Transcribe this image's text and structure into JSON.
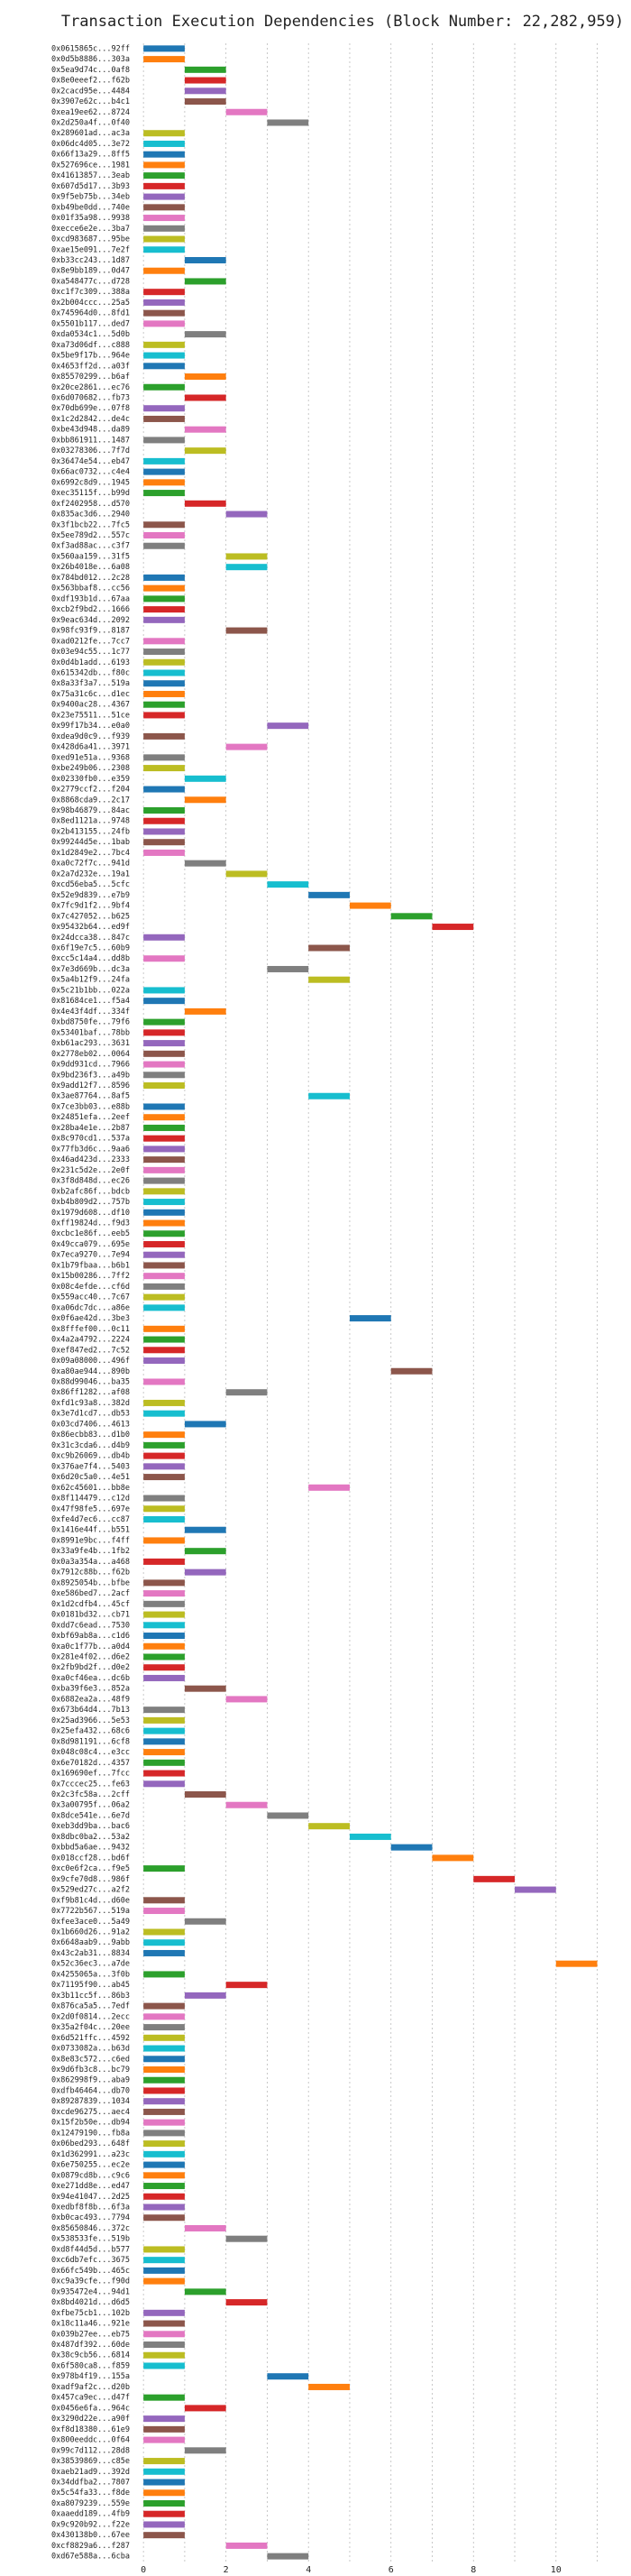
{
  "chart_data": {
    "type": "gantt",
    "title": "Transaction Execution Dependencies (Block Number: 22,282,959)",
    "categories": [
      "0x0615865c...92ff",
      "0x0d5b8886...303a",
      "0x5ea9d74c...0af8",
      "0x8e0eeef2...f62b",
      "0x2cacd95e...4484",
      "0x3907e62c...b4c1",
      "0xea19ee62...8724",
      "0x2d250a4f...0f40",
      "0x289601ad...ac3a",
      "0x06dc4d05...3e72",
      "0x66f13a29...8ff5",
      "0x527696ce...1981",
      "0x41613857...3eab",
      "0x607d5d17...3b93",
      "0x9f5eb75b...34eb",
      "0xb49be0dd...740e",
      "0x01f35a98...9938",
      "0xecce6e2e...3ba7",
      "0xcd983687...95be",
      "0xae15e091...7e2f",
      "0xb33cc243...1d87",
      "0x8e9bb189...0d47",
      "0xa548477c...d728",
      "0xc1f7c309...388a",
      "0x2b004ccc...25a5",
      "0x745964d0...8fd1",
      "0x5501b117...ded7",
      "0xda0534c1...5d0b",
      "0xa73d06df...c888",
      "0x5be9f17b...964e",
      "0x4653ff2d...a03f",
      "0x85570299...b6af",
      "0x20ce2861...ec76",
      "0x6d070682...fb73",
      "0x70db699e...07f8",
      "0x1c2d2842...de4c",
      "0xbe43d948...da89",
      "0xbb861911...1487",
      "0x03278306...7f7d",
      "0x36474e54...eb47",
      "0x66ac0732...c4e4",
      "0x6992c8d9...1945",
      "0xec35115f...b99d",
      "0xf2402958...d570",
      "0x835ac3d6...2940",
      "0x3f1bcb22...7fc5",
      "0x5ee789d2...557c",
      "0xf3ad88ac...c3f7",
      "0x560aa159...31f5",
      "0x26b4018e...6a08",
      "0x784bd012...2c28",
      "0x563bbaf8...cc56",
      "0xdf193b1d...67aa",
      "0xcb2f9bd2...1666",
      "0x9eac634d...2092",
      "0x98fc93f9...8187",
      "0xad0212fe...7cc7",
      "0x03e94c55...1c77",
      "0x0d4b1add...6193",
      "0x615342db...f80c",
      "0x8a33f3a7...519a",
      "0x75a31c6c...d1ec",
      "0x9400ac28...4367",
      "0x23e75511...51ce",
      "0x99f17b34...e0a0",
      "0xdea9d0c9...f939",
      "0x428d6a41...3971",
      "0xed91e51a...9368",
      "0xbe249b06...2308",
      "0x02330fb0...e359",
      "0x2779ccf2...f204",
      "0x8868cda9...2c17",
      "0x98b46879...84ac",
      "0x8ed1121a...9748",
      "0x2b413155...24fb",
      "0x99244d5e...1bab",
      "0x1d2849e2...7bc4",
      "0xa0c72f7c...941d",
      "0x2a7d232e...19a1",
      "0xcd56eba5...5cfc",
      "0x52e9d839...e7b9",
      "0x7fc9d1f2...9bf4",
      "0x7c427052...b625",
      "0x95432b64...ed9f",
      "0x24dcca38...847c",
      "0x6f19e7c5...60b9",
      "0xcc5c14a4...dd8b",
      "0x7e3d669b...dc3a",
      "0x5a4b12f9...24fa",
      "0x5c21b1bb...022a",
      "0x81684ce1...f5a4",
      "0x4e43f4df...334f",
      "0xbd8750fe...79f6",
      "0x53401baf...78bb",
      "0xb61ac293...3631",
      "0x2778eb02...0064",
      "0x9dd931cd...7966",
      "0x9bd236f3...a49b",
      "0x9add12f7...8596",
      "0x3ae87764...8af5",
      "0x7ce3bb03...e88b",
      "0x24851efa...2eef",
      "0x28ba4e1e...2b87",
      "0x8c970cd1...537a",
      "0x77fb3d6c...9aa6",
      "0x46ad423d...2333",
      "0x231c5d2e...2e0f",
      "0x3f8d848d...ec26",
      "0xb2afc86f...bdcb",
      "0xb4b809d2...757b",
      "0x1979d608...df10",
      "0xff19824d...f9d3",
      "0xcbc1e86f...eeb5",
      "0x49cca079...695e",
      "0x7eca9270...7e94",
      "0x1b79fbaa...b6b1",
      "0x15b00286...7ff2",
      "0x08c4efde...cf6d",
      "0x559acc40...7c67",
      "0xa06dc7dc...a86e",
      "0x0f6ae42d...3be3",
      "0x8fffef00...0c11",
      "0x4a2a4792...2224",
      "0xef847ed2...7c52",
      "0x09a08000...496f",
      "0xa80ae944...890b",
      "0x88d99046...ba35",
      "0x86ff1282...af08",
      "0xfd1c93a8...382d",
      "0x3e7d1cd7...db53",
      "0x03cd7406...4613",
      "0x86ecbb83...d1b0",
      "0x31c3cda6...d4b9",
      "0xc9b26069...db4b",
      "0x376ae7f4...5403",
      "0x6d20c5a0...4e51",
      "0x62c45601...bb8e",
      "0x8f114479...c12d",
      "0x47f98fe5...697e",
      "0xfe4d7ec6...cc87",
      "0x1416e44f...b551",
      "0x8991e9bc...f4ff",
      "0x33a9fe4b...1fb2",
      "0x0a3a354a...a468",
      "0x7912c88b...f62b",
      "0x8925054b...bfbe",
      "0xe586bed7...2acf",
      "0x1d2cdfb4...45cf",
      "0x0181bd32...cb71",
      "0xdd7c6ead...7530",
      "0xbf69ab8a...c1d6",
      "0xa0c1f77b...a0d4",
      "0x281e4f02...d6e2",
      "0x2fb9bd2f...d0e2",
      "0xa0cf46ea...dc6b",
      "0xba39f6e3...852a",
      "0x6882ea2a...48f9",
      "0x673b64d4...7b13",
      "0x25ad3966...5e53",
      "0x25efa432...68c6",
      "0x8d981191...6cf8",
      "0x048c08c4...e3cc",
      "0x6e70182d...4357",
      "0x169690ef...7fcc",
      "0x7cccec25...fe63",
      "0x2c3fc58a...2cff",
      "0x3a00795f...06a2",
      "0x8dce541e...6e7d",
      "0xeb3dd9ba...bac6",
      "0x8dbc0ba2...53a2",
      "0xbbd5a6ae...9432",
      "0x018ccf28...bd6f",
      "0xc0e6f2ca...f9e5",
      "0x9cfe70d8...986f",
      "0x529ed27c...a2f2",
      "0xf9b81c4d...d60e",
      "0x7722b567...519a",
      "0xfee3ace0...5a49",
      "0x1b660d26...91a2",
      "0x6648aab9...9abb",
      "0x43c2ab31...8834",
      "0x52c36ec3...a7de",
      "0x4255065a...3f0b",
      "0x71195f90...ab45",
      "0x3b11cc5f...86b3",
      "0x876ca5a5...7edf",
      "0x2d0f0814...2ecc",
      "0x35a2f04c...20ee",
      "0x6d521ffc...4592",
      "0x0733082a...b63d",
      "0x8e83c572...c6ed",
      "0x9d6fb3c8...bc79",
      "0x862998f9...aba9",
      "0xdfb46464...db70",
      "0x89287839...1034",
      "0xcde96275...aec4",
      "0x15f2b50e...db94",
      "0x12479190...fb8a",
      "0x06bed293...648f",
      "0x1d362991...a23c",
      "0x6e750255...ec2e",
      "0x0879cd8b...c9c6",
      "0xe271dd8e...ed47",
      "0x94e41047...2d25",
      "0xedbf8f8b...6f3a",
      "0xb0cac493...7794",
      "0x85650846...372c",
      "0x538533fe...519b",
      "0xd8f44d5d...b577",
      "0xc6db7efc...3675",
      "0x66fc549b...465c",
      "0xc9a39cfe...f90d",
      "0x935472e4...94d1",
      "0x8bd4021d...d6d5",
      "0xfbe75cb1...102b",
      "0x18c11a46...921e",
      "0x039b27ee...eb75",
      "0x487df392...60de",
      "0x38c9cb56...6814",
      "0x6f580ca8...f859",
      "0x978b4f19...155a",
      "0xadf9af2c...d20b",
      "0x457ca9ec...d47f",
      "0x0456e6fa...964c",
      "0x3290d22e...a90f",
      "0xf8d18380...61e9",
      "0x800eeddc...0f64",
      "0x99c7d112...28d8",
      "0x38539869...c85e",
      "0xaeb21ad9...392d",
      "0x34ddfba2...7807",
      "0x5c54fa33...f8de",
      "0xa8079239...559e",
      "0xaaedd189...4fb9",
      "0x9c920b92...f22e",
      "0x430138b0...67ee",
      "0xcf8829a6...f287",
      "0xd67e588a...6cba"
    ],
    "values": [
      0,
      0,
      1,
      1,
      1,
      1,
      2,
      3,
      0,
      0,
      0,
      0,
      0,
      0,
      0,
      0,
      0,
      0,
      0,
      0,
      1,
      0,
      1,
      0,
      0,
      0,
      0,
      1,
      0,
      0,
      0,
      1,
      0,
      1,
      0,
      0,
      1,
      0,
      1,
      0,
      0,
      0,
      0,
      1,
      2,
      0,
      0,
      0,
      2,
      2,
      0,
      0,
      0,
      0,
      0,
      2,
      0,
      0,
      0,
      0,
      0,
      0,
      0,
      0,
      3,
      0,
      2,
      0,
      0,
      1,
      0,
      1,
      0,
      0,
      0,
      0,
      0,
      1,
      2,
      3,
      4,
      5,
      6,
      7,
      0,
      4,
      0,
      3,
      4,
      0,
      0,
      1,
      0,
      0,
      0,
      0,
      0,
      0,
      0,
      4,
      0,
      0,
      0,
      0,
      0,
      0,
      0,
      0,
      0,
      0,
      0,
      0,
      0,
      0,
      0,
      0,
      0,
      0,
      0,
      0,
      5,
      0,
      0,
      0,
      0,
      6,
      0,
      2,
      0,
      0,
      1,
      0,
      0,
      0,
      0,
      0,
      4,
      0,
      0,
      0,
      1,
      0,
      1,
      0,
      1,
      0,
      0,
      0,
      0,
      0,
      0,
      0,
      0,
      0,
      0,
      1,
      2,
      0,
      0,
      0,
      0,
      0,
      0,
      0,
      0,
      1,
      2,
      3,
      4,
      5,
      6,
      7,
      0,
      8,
      9,
      0,
      0,
      1,
      0,
      0,
      0,
      10,
      0,
      2,
      1,
      0,
      0,
      0,
      0,
      0,
      0,
      0,
      0,
      0,
      0,
      0,
      0,
      0,
      0,
      0,
      0,
      0,
      0,
      0,
      0,
      0,
      1,
      2,
      0,
      0,
      0,
      0,
      1,
      2,
      0,
      0,
      0,
      0,
      0,
      0,
      3,
      4,
      0,
      1,
      0,
      0,
      0,
      1,
      0,
      0,
      0,
      0,
      0,
      0,
      0,
      0,
      2,
      3
    ],
    "bar_length": 1,
    "colors": [
      "#1f77b4",
      "#ff7f0e",
      "#2ca02c",
      "#d62728",
      "#9467bd",
      "#8c564b",
      "#e377c2",
      "#7f7f7f",
      "#bcbd22",
      "#17becf"
    ],
    "xlim": [
      -0.2,
      11.6
    ],
    "xticks": [
      0,
      2,
      4,
      6,
      8,
      10
    ],
    "xgrid": [
      0,
      1,
      2,
      3,
      4,
      5,
      6,
      7,
      8,
      9,
      10,
      11
    ],
    "grid": true
  }
}
